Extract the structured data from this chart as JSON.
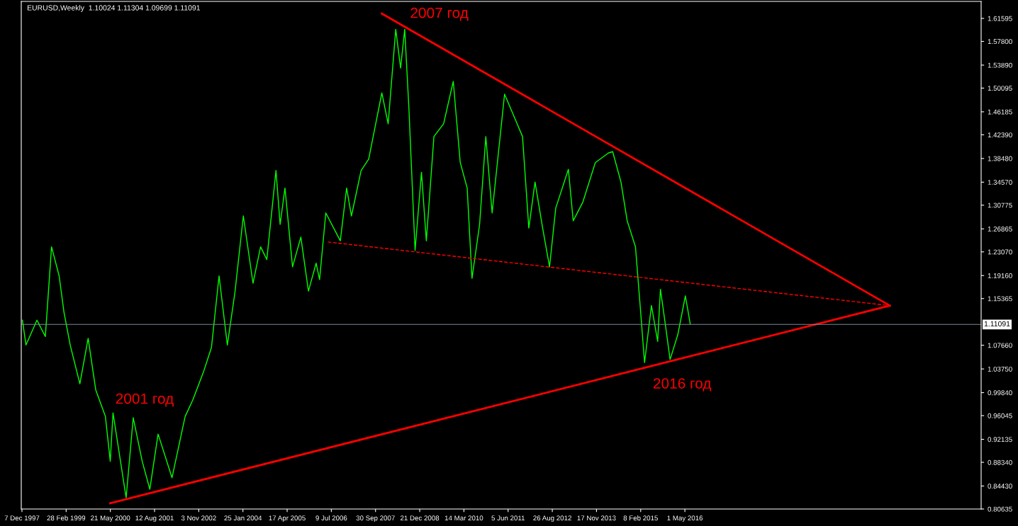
{
  "chart_data": {
    "type": "line",
    "title": "EURUSD,Weekly  1.10024 1.11304 1.09699 1.11091",
    "xlim": [
      "1997-11-30",
      "2024-07-21"
    ],
    "ylim": [
      0.80635,
      1.644
    ],
    "xticks": [
      {
        "value": "1997-12-07",
        "label": "7 Dec 1997"
      },
      {
        "value": "1999-02-28",
        "label": "28 Feb 1999"
      },
      {
        "value": "2000-05-21",
        "label": "21 May 2000"
      },
      {
        "value": "2001-08-12",
        "label": "12 Aug 2001"
      },
      {
        "value": "2002-11-03",
        "label": "3 Nov 2002"
      },
      {
        "value": "2004-01-25",
        "label": "25 Jan 2004"
      },
      {
        "value": "2005-04-17",
        "label": "17 Apr 2005"
      },
      {
        "value": "2006-07-09",
        "label": "9 Jul 2006"
      },
      {
        "value": "2007-09-30",
        "label": "30 Sep 2007"
      },
      {
        "value": "2008-12-21",
        "label": "21 Dec 2008"
      },
      {
        "value": "2010-03-14",
        "label": "14 Mar 2010"
      },
      {
        "value": "2011-06-05",
        "label": "5 Jun 2011"
      },
      {
        "value": "2012-08-26",
        "label": "26 Aug 2012"
      },
      {
        "value": "2013-11-17",
        "label": "17 Nov 2013"
      },
      {
        "value": "2015-02-08",
        "label": "8 Feb 2015"
      },
      {
        "value": "2016-05-01",
        "label": "1 May 2016"
      }
    ],
    "yticks": [
      {
        "value": 0.80635,
        "label": "0.80635"
      },
      {
        "value": 0.8443,
        "label": "0.84430"
      },
      {
        "value": 0.8834,
        "label": "0.88340"
      },
      {
        "value": 0.92135,
        "label": "0.92135"
      },
      {
        "value": 0.96045,
        "label": "0.96045"
      },
      {
        "value": 0.9984,
        "label": "0.99840"
      },
      {
        "value": 1.0375,
        "label": "1.03750"
      },
      {
        "value": 1.0766,
        "label": "1.07660"
      },
      {
        "value": 1.15365,
        "label": "1.15365"
      },
      {
        "value": 1.1916,
        "label": "1.19160"
      },
      {
        "value": 1.2307,
        "label": "1.23070"
      },
      {
        "value": 1.26865,
        "label": "1.26865"
      },
      {
        "value": 1.30775,
        "label": "1.30775"
      },
      {
        "value": 1.3457,
        "label": "1.34570"
      },
      {
        "value": 1.3848,
        "label": "1.38480"
      },
      {
        "value": 1.4239,
        "label": "1.42390"
      },
      {
        "value": 1.46185,
        "label": "1.46185"
      },
      {
        "value": 1.50095,
        "label": "1.50095"
      },
      {
        "value": 1.5389,
        "label": "1.53890"
      },
      {
        "value": 1.578,
        "label": "1.57800"
      },
      {
        "value": 1.61595,
        "label": "1.61595"
      }
    ],
    "grid": false,
    "ref_lines": [
      {
        "axis": "y",
        "value": 1.11091,
        "label": "1.11091",
        "color": "#778899"
      }
    ],
    "annotations": [
      "2007 год",
      "2001 год",
      "2016 год"
    ],
    "series": [
      {
        "color": "#00ff00",
        "x": [
          "1997-12-12",
          "1998-01-17",
          "1998-05-08",
          "1998-08-01",
          "1998-10-03",
          "1998-12-19",
          "1999-02-06",
          "1999-04-10",
          "1999-07-17",
          "1999-10-09",
          "1999-12-25",
          "2000-04-01",
          "2000-05-20",
          "2000-06-17",
          "2000-10-28",
          "2001-01-08",
          "2001-04-09",
          "2001-06-25",
          "2001-09-17",
          "2002-02-05",
          "2002-06-18",
          "2002-09-03",
          "2002-12-24",
          "2003-03-12",
          "2003-05-28",
          "2003-08-20",
          "2003-11-05",
          "2004-01-29",
          "2004-05-06",
          "2004-07-22",
          "2004-09-23",
          "2004-12-25",
          "2005-02-05",
          "2005-03-26",
          "2005-06-11",
          "2005-09-03",
          "2005-11-19",
          "2006-02-05",
          "2006-03-12",
          "2006-05-14",
          "2006-10-08",
          "2006-12-11",
          "2007-01-29",
          "2007-05-07",
          "2007-07-23",
          "2007-12-03",
          "2008-02-05",
          "2008-04-22",
          "2008-06-10",
          "2008-07-22",
          "2008-09-02",
          "2008-11-04",
          "2009-01-08",
          "2009-02-26",
          "2009-05-14",
          "2009-08-20",
          "2009-11-26",
          "2010-02-05",
          "2010-04-16",
          "2010-06-04",
          "2010-08-20",
          "2010-10-22",
          "2010-12-25",
          "2011-04-30",
          "2011-08-20",
          "2011-10-29",
          "2012-01-01",
          "2012-03-04",
          "2012-05-20",
          "2012-07-29",
          "2012-09-30",
          "2013-02-05",
          "2013-03-26",
          "2013-07-02",
          "2013-11-05",
          "2014-03-19",
          "2014-04-30",
          "2014-07-23",
          "2014-09-24",
          "2014-12-17",
          "2015-02-05",
          "2015-03-19",
          "2015-05-28",
          "2015-07-30",
          "2015-08-27",
          "2015-10-15",
          "2015-12-03",
          "2016-02-19",
          "2016-05-06",
          "2016-06-24"
        ],
        "values": [
          1.118,
          1.077,
          1.118,
          1.091,
          1.239,
          1.191,
          1.131,
          1.077,
          1.013,
          1.088,
          1.003,
          0.959,
          0.885,
          0.965,
          0.825,
          0.957,
          0.885,
          0.839,
          0.93,
          0.858,
          0.959,
          0.986,
          1.034,
          1.073,
          1.191,
          1.077,
          1.164,
          1.29,
          1.179,
          1.239,
          1.218,
          1.365,
          1.276,
          1.336,
          1.206,
          1.255,
          1.166,
          1.212,
          1.185,
          1.295,
          1.249,
          1.336,
          1.29,
          1.365,
          1.384,
          1.493,
          1.442,
          1.598,
          1.534,
          1.598,
          1.469,
          1.233,
          1.362,
          1.249,
          1.421,
          1.442,
          1.512,
          1.378,
          1.336,
          1.187,
          1.276,
          1.421,
          1.295,
          1.491,
          1.448,
          1.421,
          1.27,
          1.346,
          1.27,
          1.206,
          1.303,
          1.367,
          1.282,
          1.313,
          1.378,
          1.394,
          1.396,
          1.346,
          1.282,
          1.239,
          1.137,
          1.048,
          1.142,
          1.083,
          1.169,
          1.112,
          1.053,
          1.094,
          1.158,
          1.112
        ]
      },
      {
        "color": "#ff0000",
        "x": [
          "2000-05-20",
          "2022-01-07"
        ],
        "values": [
          0.816,
          1.142
        ]
      },
      {
        "color": "#ff0000",
        "x": [
          "2007-12-03",
          "2022-01-07"
        ],
        "values": [
          1.624,
          1.142
        ]
      },
      {
        "color": "#ff0000",
        "line_style": "dashed",
        "x": [
          "2006-06-04",
          "2022-01-07"
        ],
        "values": [
          1.247,
          1.142
        ]
      }
    ]
  }
}
